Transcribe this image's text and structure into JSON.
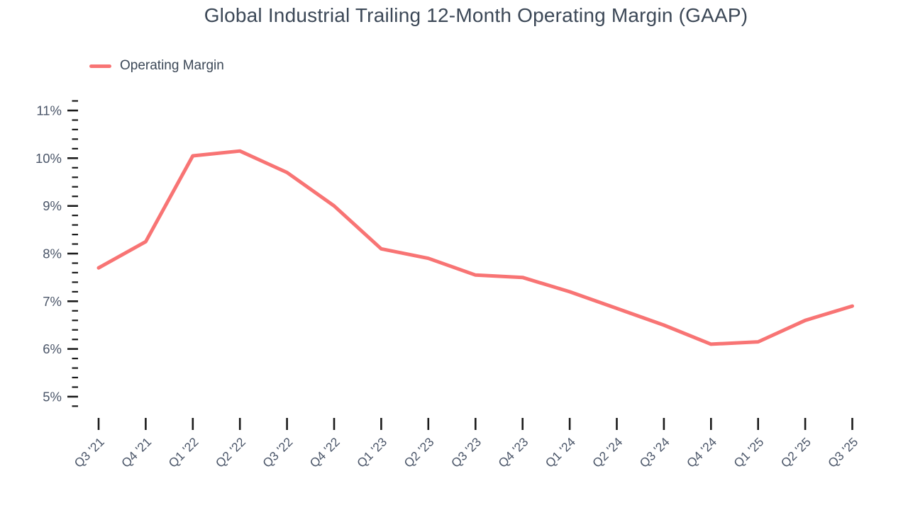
{
  "title": "Global Industrial Trailing 12-Month Operating Margin (GAAP)",
  "legend": {
    "label": "Operating Margin",
    "position": "top-left"
  },
  "colors": {
    "line": "#F87474",
    "title_text": "#3C4857",
    "axis_text": "#4A5568",
    "tick": "#1B1B1B",
    "background": "#FFFFFF"
  },
  "chart_data": {
    "type": "line",
    "title": "Global Industrial Trailing 12-Month Operating Margin (GAAP)",
    "categories": [
      "Q3 '21",
      "Q4 '21",
      "Q1 '22",
      "Q2 '22",
      "Q3 '22",
      "Q4 '22",
      "Q1 '23",
      "Q2 '23",
      "Q3 '23",
      "Q4 '23",
      "Q1 '24",
      "Q2 '24",
      "Q3 '24",
      "Q4 '24",
      "Q1 '25",
      "Q2 '25",
      "Q3 '25"
    ],
    "series": [
      {
        "name": "Operating Margin",
        "values": [
          7.7,
          8.25,
          10.05,
          10.15,
          9.7,
          9.0,
          8.1,
          7.9,
          7.55,
          7.5,
          7.2,
          6.85,
          6.5,
          6.1,
          6.15,
          6.6,
          6.9
        ]
      }
    ],
    "xlabel": "",
    "ylabel": "",
    "y_axis": {
      "unit": "%",
      "major_tick_labels": [
        "5%",
        "6%",
        "7%",
        "8%",
        "9%",
        "10%",
        "11%"
      ],
      "major_tick_values": [
        5,
        6,
        7,
        8,
        9,
        10,
        11
      ],
      "minor_tick_step": 0.2,
      "axis_min": 4.8,
      "axis_max": 11.2
    },
    "grid": false,
    "legend_position": "top-left"
  }
}
